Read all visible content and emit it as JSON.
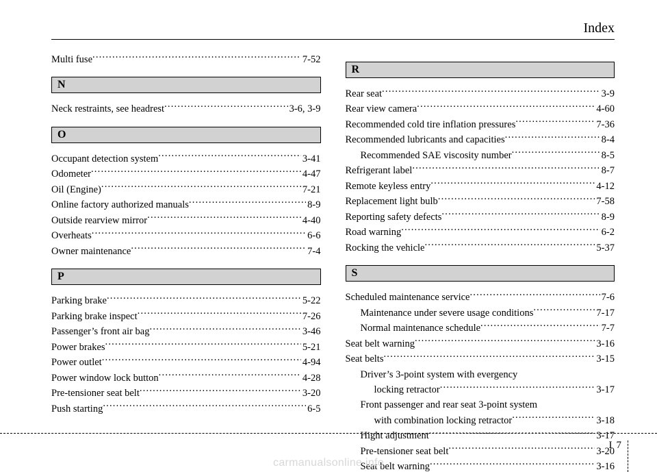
{
  "header": {
    "title": "Index"
  },
  "footer": {
    "section": "I",
    "page": "7",
    "watermark": "carmanualsonline.info"
  },
  "left": [
    {
      "t": "entry",
      "label": "Multi fuse",
      "page": "7-52"
    },
    {
      "t": "bar",
      "letter": "N"
    },
    {
      "t": "entry",
      "label": "Neck restraints, see headrest",
      "page": "3-6, 3-9"
    },
    {
      "t": "bar",
      "letter": "O"
    },
    {
      "t": "entry",
      "label": "Occupant detection system",
      "page": "3-41"
    },
    {
      "t": "entry",
      "label": "Odometer",
      "page": "4-47"
    },
    {
      "t": "entry",
      "label": "Oil (Engine)",
      "page": "7-21"
    },
    {
      "t": "entry",
      "label": "Online factory authorized manuals",
      "page": "8-9"
    },
    {
      "t": "entry",
      "label": "Outside rearview mirror",
      "page": "4-40"
    },
    {
      "t": "entry",
      "label": "Overheats",
      "page": "6-6"
    },
    {
      "t": "entry",
      "label": "Owner maintenance",
      "page": "7-4"
    },
    {
      "t": "bar",
      "letter": "P"
    },
    {
      "t": "entry",
      "label": "Parking brake",
      "page": "5-22"
    },
    {
      "t": "entry",
      "label": "Parking brake inspect",
      "page": "7-26"
    },
    {
      "t": "entry",
      "label": "Passenger’s front air bag",
      "page": "3-46"
    },
    {
      "t": "entry",
      "label": "Power brakes",
      "page": "5-21"
    },
    {
      "t": "entry",
      "label": "Power outlet",
      "page": "4-94"
    },
    {
      "t": "entry",
      "label": "Power window lock button",
      "page": "4-28"
    },
    {
      "t": "entry",
      "label": "Pre-tensioner seat belt",
      "page": "3-20"
    },
    {
      "t": "entry",
      "label": "Push starting",
      "page": "6-5"
    }
  ],
  "right": [
    {
      "t": "bar",
      "letter": "R"
    },
    {
      "t": "entry",
      "label": "Rear seat",
      "page": "3-9"
    },
    {
      "t": "entry",
      "label": "Rear view camera",
      "page": "4-60"
    },
    {
      "t": "entry",
      "label": "Recommended cold tire inflation pressures",
      "page": "7-36"
    },
    {
      "t": "entry",
      "label": "Recommended lubricants and capacities",
      "page": "8-4"
    },
    {
      "t": "entry",
      "label": "Recommended SAE viscosity number",
      "page": "8-5",
      "indent": 1
    },
    {
      "t": "entry",
      "label": "Refrigerant label",
      "page": "8-7"
    },
    {
      "t": "entry",
      "label": "Remote keyless entry",
      "page": "4-12"
    },
    {
      "t": "entry",
      "label": "Replacement light bulb",
      "page": "7-58"
    },
    {
      "t": "entry",
      "label": "Reporting safety defects",
      "page": "8-9"
    },
    {
      "t": "entry",
      "label": "Road warning",
      "page": "6-2"
    },
    {
      "t": "entry",
      "label": "Rocking the vehicle",
      "page": "5-37"
    },
    {
      "t": "bar",
      "letter": "S"
    },
    {
      "t": "entry",
      "label": "Scheduled maintenance service",
      "page": "7-6"
    },
    {
      "t": "entry",
      "label": "Maintenance under severe usage conditions",
      "page": "7-17",
      "indent": 1
    },
    {
      "t": "entry",
      "label": "Normal maintenance schedule",
      "page": "7-7",
      "indent": 1
    },
    {
      "t": "entry",
      "label": "Seat belt warning",
      "page": "3-16"
    },
    {
      "t": "entry",
      "label": "Seat belts",
      "page": "3-15"
    },
    {
      "t": "entry",
      "label": "Driver’s 3-point system with evergency",
      "page": "",
      "indent": 1,
      "noleader": true
    },
    {
      "t": "entry",
      "label": "locking retractor",
      "page": "3-17",
      "indent": 2
    },
    {
      "t": "entry",
      "label": "Front passenger and rear seat 3-point system",
      "page": "",
      "indent": 1,
      "noleader": true
    },
    {
      "t": "entry",
      "label": "with combination locking retractor",
      "page": "3-18",
      "indent": 2
    },
    {
      "t": "entry",
      "label": "Hight adjustment",
      "page": "3-17",
      "indent": 1
    },
    {
      "t": "entry",
      "label": "Pre-tensioner seat belt",
      "page": "3-20",
      "indent": 1
    },
    {
      "t": "entry",
      "label": "Seat belt warning",
      "page": "3-16",
      "indent": 1
    }
  ]
}
